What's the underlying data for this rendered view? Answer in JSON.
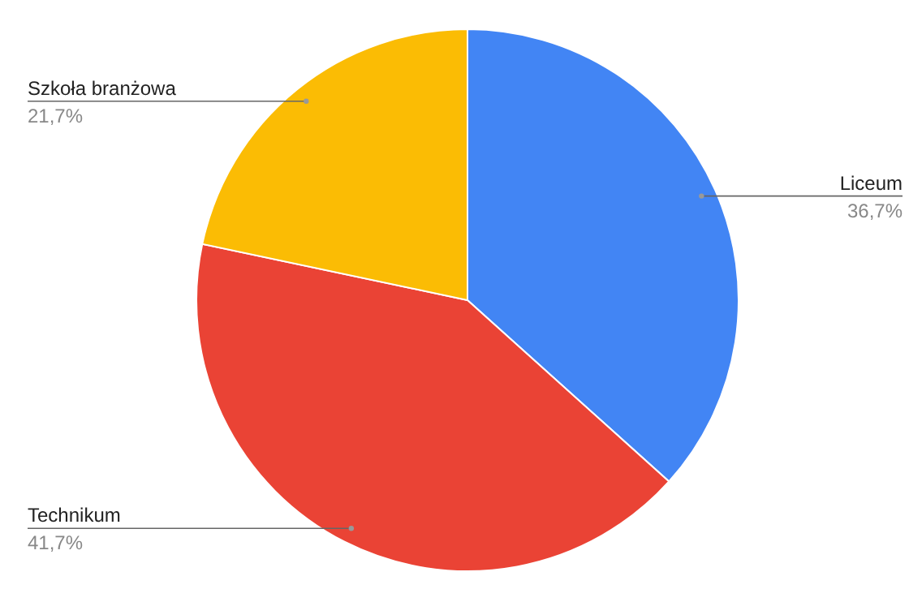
{
  "chart_data": {
    "type": "pie",
    "categories": [
      "Liceum",
      "Technikum",
      "Szkoła branżowa"
    ],
    "values": [
      36.7,
      41.7,
      21.7
    ],
    "colors": [
      "#4285f4",
      "#ea4335",
      "#fbbc04"
    ],
    "value_labels": [
      "36,7%",
      "41,7%",
      "21,7%"
    ]
  }
}
